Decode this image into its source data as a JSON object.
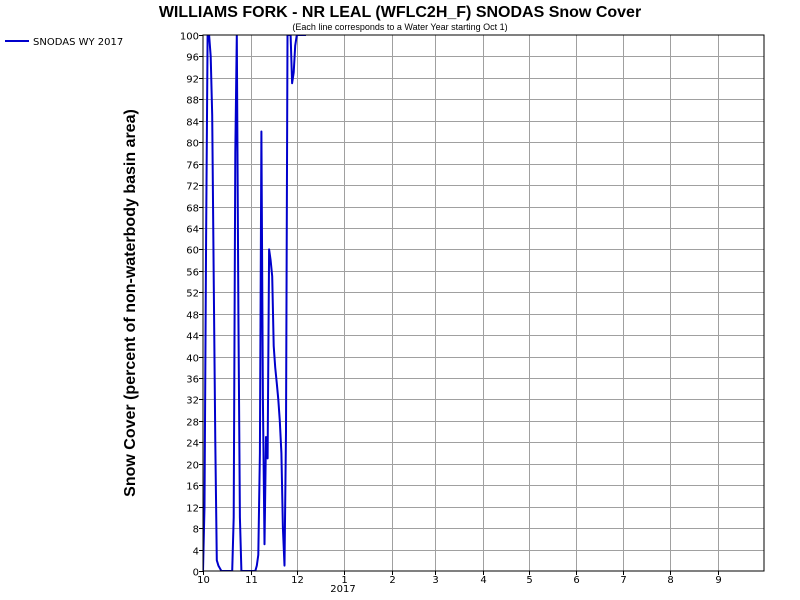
{
  "chart_data": {
    "type": "line",
    "title": "WILLIAMS FORK - NR LEAL (WFLC2H_F) SNODAS Snow Cover",
    "subtitle": "(Each line corresponds to a Water Year starting Oct 1)",
    "xlabel": "",
    "ylabel": "Snow Cover (percent of non-waterbody basin area)",
    "ylim": [
      0,
      100
    ],
    "y_tick_step": 4,
    "x_ticks": [
      "10",
      "11",
      "12",
      "1",
      "2",
      "3",
      "4",
      "5",
      "6",
      "7",
      "8",
      "9"
    ],
    "x_year_label": "2017",
    "grid": true,
    "legend_position": "top-left",
    "series": [
      {
        "name": "SNODAS WY 2017",
        "color": "#0000cc",
        "x": [
          "2016-10-01",
          "2016-10-02",
          "2016-10-03",
          "2016-10-04",
          "2016-10-05",
          "2016-10-06",
          "2016-10-07",
          "2016-10-08",
          "2016-10-09",
          "2016-10-10",
          "2016-10-11",
          "2016-10-12",
          "2016-10-13",
          "2016-10-14",
          "2016-10-15",
          "2016-10-16",
          "2016-10-17",
          "2016-10-18",
          "2016-10-19",
          "2016-10-20",
          "2016-10-21",
          "2016-10-22",
          "2016-10-23",
          "2016-10-24",
          "2016-10-25",
          "2016-10-26",
          "2016-10-27",
          "2016-10-28",
          "2016-10-29",
          "2016-10-30",
          "2016-10-31",
          "2016-11-01",
          "2016-11-02",
          "2016-11-03",
          "2016-11-04",
          "2016-11-05",
          "2016-11-06",
          "2016-11-07",
          "2016-11-08",
          "2016-11-09",
          "2016-11-10",
          "2016-11-11",
          "2016-11-12",
          "2016-11-13",
          "2016-11-14",
          "2016-11-15",
          "2016-11-16",
          "2016-11-17",
          "2016-11-18",
          "2016-11-19",
          "2016-11-20",
          "2016-11-21",
          "2016-11-22",
          "2016-11-23",
          "2016-11-24",
          "2016-11-25",
          "2016-11-26",
          "2016-11-27",
          "2016-11-28",
          "2016-11-29",
          "2016-11-30",
          "2016-12-01",
          "2016-12-02",
          "2016-12-03",
          "2016-12-04",
          "2016-12-05",
          "2016-12-06",
          "2016-12-07"
        ],
        "y": [
          0,
          12,
          62,
          100,
          100,
          96,
          85,
          53,
          24,
          2,
          1,
          0.5,
          0,
          0,
          0,
          0,
          0,
          0,
          0,
          0,
          10,
          78,
          100,
          48,
          10,
          0,
          0,
          0,
          0,
          0,
          0,
          0,
          0,
          0,
          0,
          1,
          3,
          22,
          82,
          32,
          5,
          25,
          21,
          60,
          58,
          55,
          42,
          38,
          35,
          32,
          28,
          22,
          8,
          1,
          26,
          100,
          100,
          100,
          91,
          93,
          98,
          100,
          100,
          100,
          100,
          100,
          100,
          100
        ]
      }
    ]
  }
}
